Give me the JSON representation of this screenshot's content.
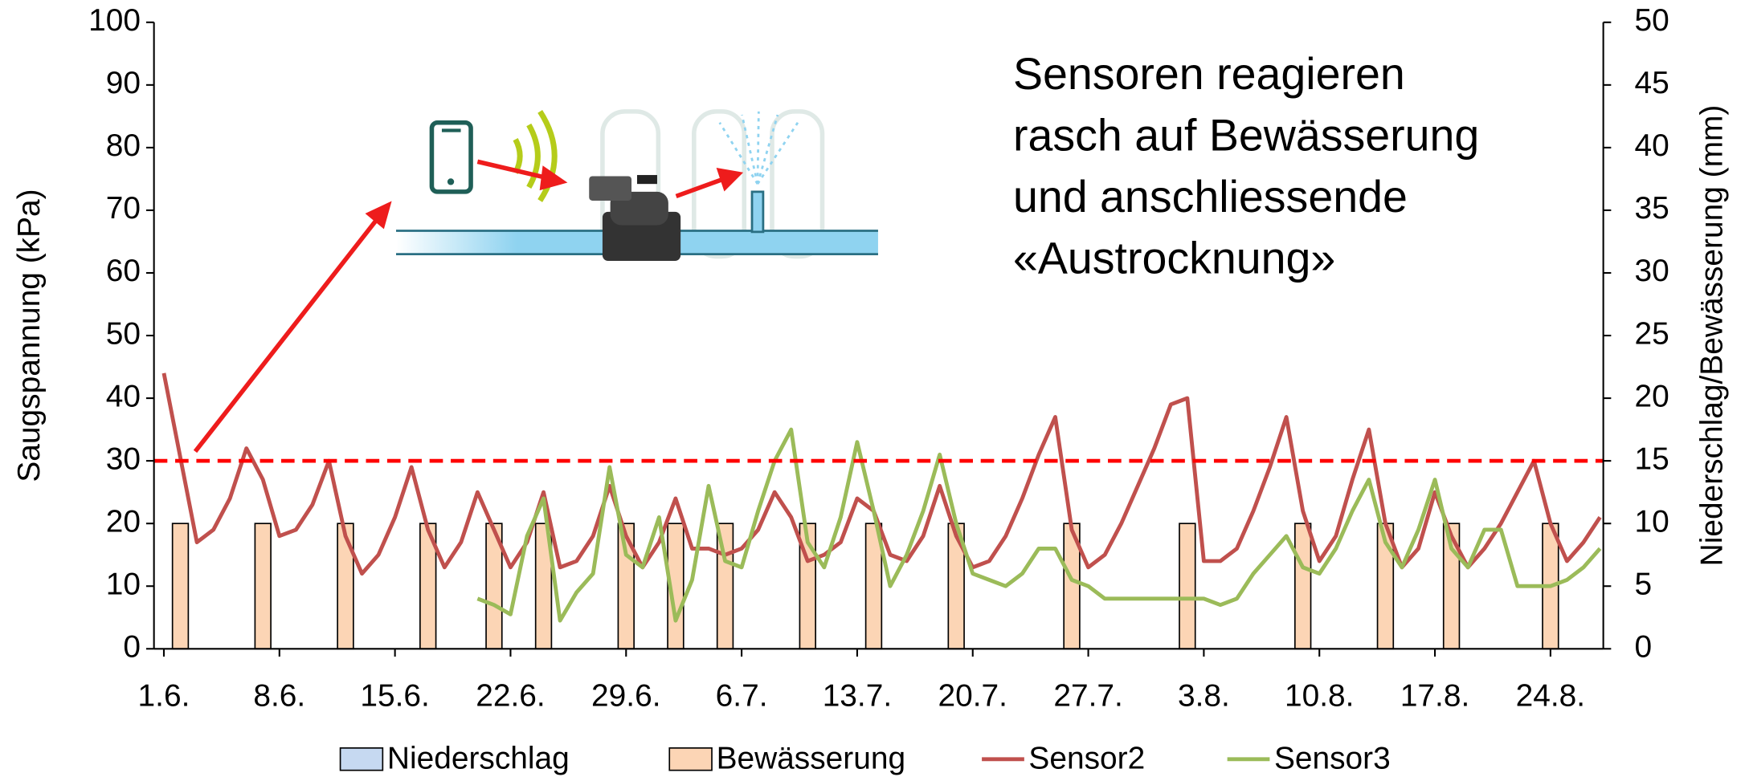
{
  "chart_data": {
    "type": "combo",
    "y_label": "Saugspannung (kPa)",
    "y2_label": "Niederschlag/Bewässerung (mm)",
    "annotation": [
      "Sensoren reagieren",
      "rasch auf Bewässerung",
      "und anschliessende",
      "«Austrocknung»"
    ],
    "xlim": [
      -0.6,
      87.2
    ],
    "xticks": [
      {
        "value": 0,
        "label": "1.6."
      },
      {
        "value": 7,
        "label": "8.6."
      },
      {
        "value": 14,
        "label": "15.6."
      },
      {
        "value": 21,
        "label": "22.6."
      },
      {
        "value": 28,
        "label": "29.6."
      },
      {
        "value": 35,
        "label": "6.7."
      },
      {
        "value": 42,
        "label": "13.7."
      },
      {
        "value": 49,
        "label": "20.7."
      },
      {
        "value": 56,
        "label": "27.7."
      },
      {
        "value": 63,
        "label": "3.8."
      },
      {
        "value": 70,
        "label": "10.8."
      },
      {
        "value": 77,
        "label": "17.8."
      },
      {
        "value": 84,
        "label": "24.8."
      }
    ],
    "ylim": [
      0,
      100
    ],
    "yticks": [
      0,
      10,
      20,
      30,
      40,
      50,
      60,
      70,
      80,
      90,
      100
    ],
    "y2lim": [
      0,
      50
    ],
    "y2ticks": [
      0,
      5,
      10,
      15,
      20,
      25,
      30,
      35,
      40,
      45,
      50
    ],
    "hline": {
      "value": 30,
      "color": "#ff0000"
    },
    "series": [
      {
        "name": "Niederschlag",
        "type": "bar",
        "axis": "y2",
        "color": "#c6d9f1",
        "x": [],
        "values": []
      },
      {
        "name": "Bewässerung",
        "type": "bar",
        "axis": "y2",
        "color": "#fcd5b5",
        "x": [
          1,
          6,
          11,
          16,
          20,
          23,
          28,
          31,
          34,
          39,
          43,
          48,
          55,
          62,
          69,
          74,
          78,
          84
        ],
        "values": [
          10,
          10,
          10,
          10,
          10,
          10,
          10,
          10,
          10,
          10,
          10,
          10,
          10,
          10,
          10,
          10,
          10,
          10
        ]
      },
      {
        "name": "Sensor2",
        "type": "line",
        "color": "#c0504d",
        "x": [
          0,
          2,
          3,
          4,
          5,
          6,
          7,
          8,
          9,
          10,
          11,
          12,
          13,
          14,
          15,
          16,
          17,
          18,
          19,
          20,
          21,
          22,
          23,
          24,
          25,
          26,
          27,
          28,
          29,
          30,
          31,
          32,
          33,
          34,
          35,
          36,
          37,
          38,
          39,
          40,
          41,
          42,
          43,
          44,
          45,
          46,
          47,
          48,
          49,
          50,
          51,
          52,
          53,
          54,
          55,
          56,
          57,
          58,
          59,
          60,
          61,
          62,
          63,
          64,
          65,
          66,
          67,
          68,
          69,
          70,
          71,
          72,
          73,
          74,
          75,
          76,
          77,
          78,
          79,
          80,
          81,
          82,
          83,
          84,
          85,
          86,
          87
        ],
        "values": [
          44,
          17,
          19,
          24,
          32,
          27,
          18,
          19,
          23,
          30,
          18,
          12,
          15,
          21,
          29,
          19,
          13,
          17,
          25,
          19,
          13,
          17,
          25,
          13,
          14,
          18,
          26,
          18,
          13,
          17,
          24,
          16,
          16,
          15,
          16,
          19,
          25,
          21,
          14,
          15,
          17,
          24,
          22,
          15,
          14,
          18,
          26,
          18,
          13,
          14,
          18,
          24,
          31,
          37,
          19,
          13,
          15,
          20,
          26,
          32,
          39,
          40,
          14,
          14,
          16,
          22,
          29,
          37,
          22,
          14,
          18,
          27,
          35,
          20,
          13,
          16,
          25,
          18,
          13,
          16,
          20,
          25,
          30,
          20,
          14,
          17,
          21
        ]
      },
      {
        "name": "Sensor3",
        "type": "line",
        "color": "#9bbb59",
        "x": [
          19,
          20,
          21,
          22,
          23,
          24,
          25,
          26,
          27,
          28,
          29,
          30,
          31,
          32,
          33,
          34,
          35,
          36,
          37,
          38,
          39,
          40,
          41,
          42,
          43,
          44,
          45,
          46,
          47,
          48,
          49,
          50,
          51,
          52,
          53,
          54,
          55,
          56,
          57,
          58,
          59,
          60,
          61,
          62,
          63,
          64,
          65,
          66,
          67,
          68,
          69,
          70,
          71,
          72,
          73,
          74,
          75,
          76,
          77,
          78,
          79,
          80,
          81,
          82,
          83,
          84,
          85,
          86,
          87
        ],
        "values": [
          8,
          7,
          5.5,
          18,
          24,
          4.5,
          9,
          12,
          29,
          15,
          13,
          21,
          4.5,
          11,
          26,
          14,
          13,
          22,
          30,
          35,
          17,
          13,
          21,
          33,
          22,
          10,
          15,
          22,
          31,
          20,
          12,
          11,
          10,
          12,
          16,
          16,
          11,
          10,
          8,
          8,
          8,
          8,
          8,
          8,
          8,
          7,
          8,
          12,
          15,
          18,
          13,
          12,
          16,
          22,
          27,
          17,
          13,
          19,
          27,
          16,
          13,
          19,
          19,
          10,
          10,
          10,
          11,
          13,
          16
        ]
      }
    ]
  }
}
